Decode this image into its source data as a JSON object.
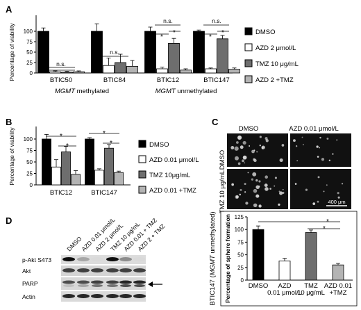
{
  "panels": {
    "A": "A",
    "B": "B",
    "C": "C",
    "D": "D"
  },
  "colors": {
    "DMSO": "#000000",
    "AZD": "#ffffff",
    "TMZ": "#6e6e6e",
    "AZDTMZ": "#b4b4b4"
  },
  "chart_data": [
    {
      "panel": "A",
      "type": "bar",
      "ylabel": "Percentage of viability",
      "ylim": [
        0,
        100
      ],
      "yticks": [
        "0",
        "25",
        "50",
        "75",
        "100"
      ],
      "categories": [
        "BTIC50",
        "BTIC84",
        "BTIC12",
        "BTIC147"
      ],
      "group_labels": [
        {
          "italic": "MGMT",
          "text": " methylated"
        },
        {
          "italic": "MGMT",
          "text": " unmethylated"
        }
      ],
      "series": [
        {
          "name": "DMSO",
          "values": [
            100,
            100,
            100,
            100
          ],
          "errors": [
            8,
            18,
            10,
            3
          ]
        },
        {
          "name": "AZD 2 μmol/L",
          "values": [
            3,
            18,
            10,
            10
          ],
          "errors": [
            2,
            18,
            4,
            2
          ]
        },
        {
          "name": "TMZ 10 μg/mL",
          "values": [
            2,
            25,
            71,
            82
          ],
          "errors": [
            2,
            20,
            12,
            8
          ]
        },
        {
          "name": "AZD 2 +TMZ",
          "values": [
            3,
            16,
            7,
            9
          ],
          "errors": [
            2,
            14,
            3,
            3
          ]
        }
      ],
      "annotations": [
        "n.s.",
        "n.s.",
        "n.s.",
        "*",
        "*",
        "n.s.",
        "*",
        "*"
      ]
    },
    {
      "panel": "B",
      "type": "bar",
      "ylabel": "Percentage of viability",
      "ylim": [
        0,
        100
      ],
      "yticks": [
        "0",
        "25",
        "50",
        "75",
        "100"
      ],
      "categories": [
        "BTIC12",
        "BTIC147"
      ],
      "series": [
        {
          "name": "DMSO",
          "values": [
            100,
            100
          ],
          "errors": [
            10,
            3
          ]
        },
        {
          "name": "AZD 0.01 μmol/L",
          "values": [
            39,
            32
          ],
          "errors": [
            16,
            3
          ]
        },
        {
          "name": "TMZ 10μg/mL",
          "values": [
            72,
            80
          ],
          "errors": [
            12,
            8
          ]
        },
        {
          "name": "AZD 0.01 +TMZ",
          "values": [
            23,
            27
          ],
          "errors": [
            8,
            3
          ]
        }
      ],
      "annotations": [
        "*",
        "*",
        "*",
        "*"
      ]
    },
    {
      "panel": "C",
      "type": "bar",
      "ylabel": "Percentage of sphere formation",
      "side_label": "BTIC147 (MGMT unmethylated)",
      "ylim": [
        0,
        125
      ],
      "yticks": [
        "0",
        "25",
        "50",
        "75",
        "100",
        "125"
      ],
      "categories": [
        "DMSO",
        "AZD 0.01 μmol/L",
        "TMZ 10 μg/mL",
        "AZD 0.01 +TMZ"
      ],
      "values": [
        100,
        38,
        94,
        30
      ],
      "errors": [
        7,
        5,
        5,
        3
      ],
      "annotations": [
        "*",
        "*"
      ]
    }
  ],
  "micrographs": {
    "col_dmso": "DMSO",
    "col_azd": "AZD 0.01 μmol/L",
    "row_dmso": "DMSO",
    "row_tmz": "TMZ 10 μg/mL",
    "scale_bar": "400 μm"
  },
  "blot": {
    "lanes": [
      "DMSO",
      "AZD 0.01 μmol/L",
      "AZD 2 μmol/L",
      "TMZ 10 μg/mL",
      "AZD 0.01 + TMZ",
      "AZD 2 + TMZ"
    ],
    "rows": [
      "p-Akt S473",
      "Akt",
      "PARP",
      "Actin"
    ]
  }
}
